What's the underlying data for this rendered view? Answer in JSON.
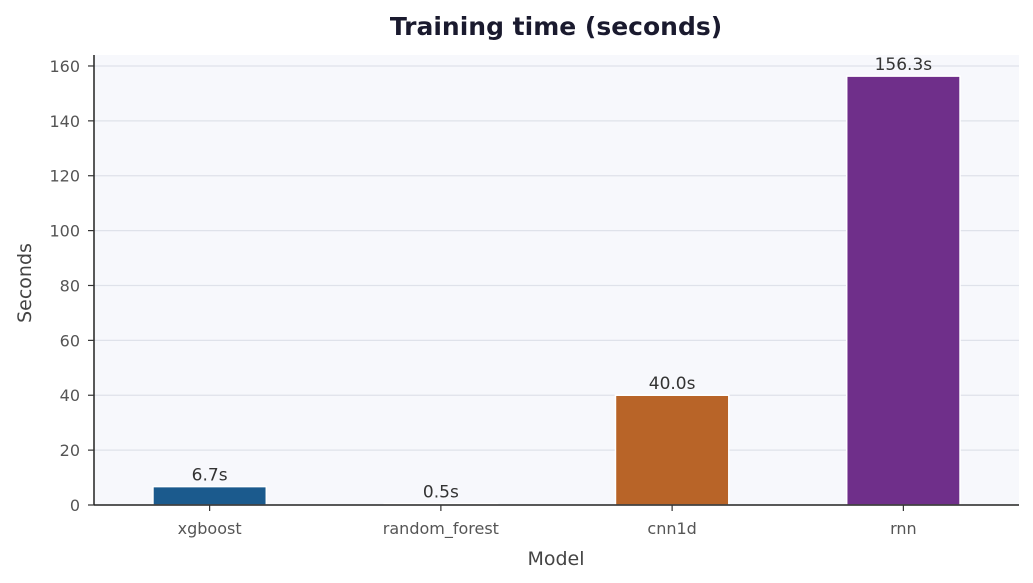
{
  "chart_data": {
    "type": "bar",
    "title": "Training time (seconds)",
    "xlabel": "Model",
    "ylabel": "Seconds",
    "categories": [
      "xgboost",
      "random_forest",
      "cnn1d",
      "rnn"
    ],
    "values": [
      6.7,
      0.5,
      40.0,
      156.3
    ],
    "data_labels": [
      "6.7s",
      "0.5s",
      "40.0s",
      "156.3s"
    ],
    "colors": [
      "#1b5a8d",
      "#2f6e8f",
      "#b86428",
      "#6f2f8a"
    ],
    "ylim": [
      0,
      164
    ],
    "yticks": [
      0,
      20,
      40,
      60,
      80,
      100,
      120,
      140,
      160
    ],
    "grid": "horizontal",
    "legend": "none",
    "plot_background": "#f7f8fc"
  }
}
